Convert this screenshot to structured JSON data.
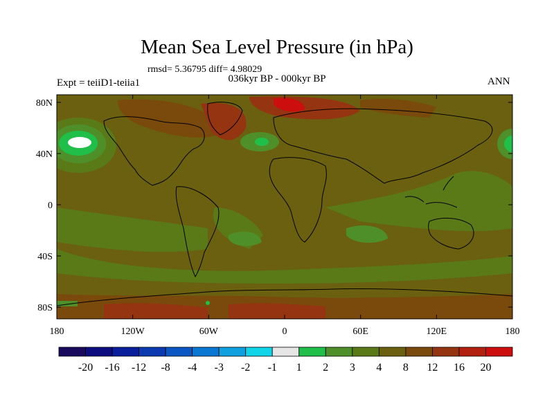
{
  "title": "Mean Sea Level Pressure (in hPa)",
  "stats": "rmsd= 5.36795 diff= 4.98029",
  "subtitle": "036kyr BP - 000kyr BP",
  "experiment": "Expt = teiiD1-teiia1",
  "season": "ANN",
  "map": {
    "lat_ticks": [
      "80N",
      "40N",
      "0",
      "40S",
      "80S"
    ],
    "lon_ticks": [
      "180",
      "120W",
      "60W",
      "0",
      "60E",
      "120E",
      "180"
    ]
  },
  "colorbar": {
    "labels": [
      "-20",
      "-16",
      "-12",
      "-8",
      "-4",
      "-3",
      "-2",
      "-1",
      "1",
      "2",
      "3",
      "4",
      "8",
      "12",
      "16",
      "20"
    ],
    "colors": [
      "#1a0a5e",
      "#0d0d80",
      "#0a1f9c",
      "#0b3ab0",
      "#0a56c2",
      "#0a78d2",
      "#0fa0e0",
      "#10d4e8",
      "#e6e6e6",
      "#1fbf4a",
      "#4f8f2a",
      "#5a7a18",
      "#6a6010",
      "#7a4a0c",
      "#953410",
      "#b2200f",
      "#cc0e0e"
    ]
  }
}
